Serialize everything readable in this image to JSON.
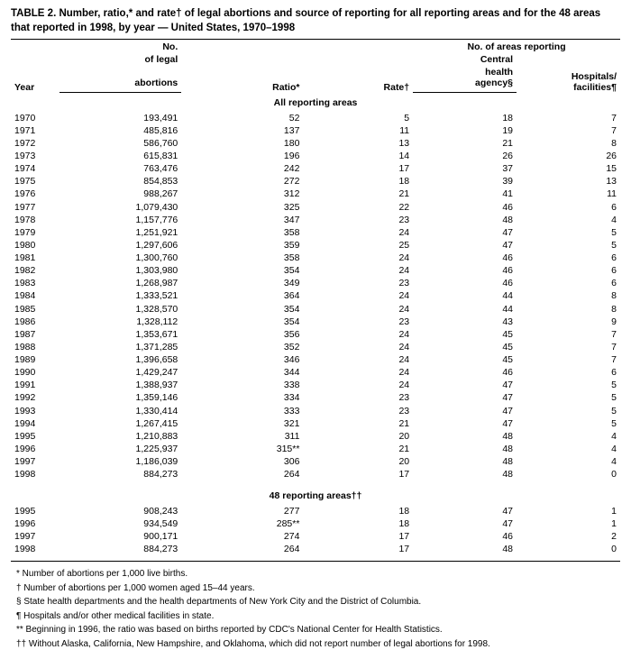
{
  "title": "TABLE 2. Number, ratio,* and rate† of legal abortions and source of reporting for all reporting areas and for the 48 areas that reported in 1998, by year — United States, 1970–1998",
  "columns": {
    "year": "Year",
    "abortions_l1": "No.",
    "abortions_l2": "of legal",
    "abortions_l3": "abortions",
    "ratio": "Ratio*",
    "rate": "Rate†",
    "group_header": "No. of areas reporting",
    "agency_l1": "Central",
    "agency_l2": "health",
    "agency_l3": "agency§",
    "hosp_l1": "Hospitals/",
    "hosp_l2": "facilities¶"
  },
  "sections": [
    {
      "heading": "All reporting areas",
      "rows": [
        {
          "year": "1970",
          "abortions": "193,491",
          "ratio": "52",
          "rate": "5",
          "agency": "18",
          "hosp": "7"
        },
        {
          "year": "1971",
          "abortions": "485,816",
          "ratio": "137",
          "rate": "11",
          "agency": "19",
          "hosp": "7"
        },
        {
          "year": "1972",
          "abortions": "586,760",
          "ratio": "180",
          "rate": "13",
          "agency": "21",
          "hosp": "8"
        },
        {
          "year": "1973",
          "abortions": "615,831",
          "ratio": "196",
          "rate": "14",
          "agency": "26",
          "hosp": "26"
        },
        {
          "year": "1974",
          "abortions": "763,476",
          "ratio": "242",
          "rate": "17",
          "agency": "37",
          "hosp": "15"
        },
        {
          "year": "1975",
          "abortions": "854,853",
          "ratio": "272",
          "rate": "18",
          "agency": "39",
          "hosp": "13"
        },
        {
          "year": "1976",
          "abortions": "988,267",
          "ratio": "312",
          "rate": "21",
          "agency": "41",
          "hosp": "11"
        },
        {
          "year": "1977",
          "abortions": "1,079,430",
          "ratio": "325",
          "rate": "22",
          "agency": "46",
          "hosp": "6"
        },
        {
          "year": "1978",
          "abortions": "1,157,776",
          "ratio": "347",
          "rate": "23",
          "agency": "48",
          "hosp": "4"
        },
        {
          "year": "1979",
          "abortions": "1,251,921",
          "ratio": "358",
          "rate": "24",
          "agency": "47",
          "hosp": "5"
        },
        {
          "year": "1980",
          "abortions": "1,297,606",
          "ratio": "359",
          "rate": "25",
          "agency": "47",
          "hosp": "5"
        },
        {
          "year": "1981",
          "abortions": "1,300,760",
          "ratio": "358",
          "rate": "24",
          "agency": "46",
          "hosp": "6"
        },
        {
          "year": "1982",
          "abortions": "1,303,980",
          "ratio": "354",
          "rate": "24",
          "agency": "46",
          "hosp": "6"
        },
        {
          "year": "1983",
          "abortions": "1,268,987",
          "ratio": "349",
          "rate": "23",
          "agency": "46",
          "hosp": "6"
        },
        {
          "year": "1984",
          "abortions": "1,333,521",
          "ratio": "364",
          "rate": "24",
          "agency": "44",
          "hosp": "8"
        },
        {
          "year": "1985",
          "abortions": "1,328,570",
          "ratio": "354",
          "rate": "24",
          "agency": "44",
          "hosp": "8"
        },
        {
          "year": "1986",
          "abortions": "1,328,112",
          "ratio": "354",
          "rate": "23",
          "agency": "43",
          "hosp": "9"
        },
        {
          "year": "1987",
          "abortions": "1,353,671",
          "ratio": "356",
          "rate": "24",
          "agency": "45",
          "hosp": "7"
        },
        {
          "year": "1988",
          "abortions": "1,371,285",
          "ratio": "352",
          "rate": "24",
          "agency": "45",
          "hosp": "7"
        },
        {
          "year": "1989",
          "abortions": "1,396,658",
          "ratio": "346",
          "rate": "24",
          "agency": "45",
          "hosp": "7"
        },
        {
          "year": "1990",
          "abortions": "1,429,247",
          "ratio": "344",
          "rate": "24",
          "agency": "46",
          "hosp": "6"
        },
        {
          "year": "1991",
          "abortions": "1,388,937",
          "ratio": "338",
          "rate": "24",
          "agency": "47",
          "hosp": "5"
        },
        {
          "year": "1992",
          "abortions": "1,359,146",
          "ratio": "334",
          "rate": "23",
          "agency": "47",
          "hosp": "5"
        },
        {
          "year": "1993",
          "abortions": "1,330,414",
          "ratio": "333",
          "rate": "23",
          "agency": "47",
          "hosp": "5"
        },
        {
          "year": "1994",
          "abortions": "1,267,415",
          "ratio": "321",
          "rate": "21",
          "agency": "47",
          "hosp": "5"
        },
        {
          "year": "1995",
          "abortions": "1,210,883",
          "ratio": "311",
          "rate": "20",
          "agency": "48",
          "hosp": "4"
        },
        {
          "year": "1996",
          "abortions": "1,225,937",
          "ratio": "315**",
          "rate": "21",
          "agency": "48",
          "hosp": "4"
        },
        {
          "year": "1997",
          "abortions": "1,186,039",
          "ratio": "306",
          "rate": "20",
          "agency": "48",
          "hosp": "4"
        },
        {
          "year": "1998",
          "abortions": "884,273",
          "ratio": "264",
          "rate": "17",
          "agency": "48",
          "hosp": "0"
        }
      ]
    },
    {
      "heading": "48 reporting areas††",
      "rows": [
        {
          "year": "1995",
          "abortions": "908,243",
          "ratio": "277",
          "rate": "18",
          "agency": "47",
          "hosp": "1"
        },
        {
          "year": "1996",
          "abortions": "934,549",
          "ratio": "285**",
          "rate": "18",
          "agency": "47",
          "hosp": "1"
        },
        {
          "year": "1997",
          "abortions": "900,171",
          "ratio": "274",
          "rate": "17",
          "agency": "46",
          "hosp": "2"
        },
        {
          "year": "1998",
          "abortions": "884,273",
          "ratio": "264",
          "rate": "17",
          "agency": "48",
          "hosp": "0"
        }
      ]
    }
  ],
  "footnotes": [
    "* Number of abortions per 1,000 live births.",
    "† Number of abortions per 1,000 women aged 15–44 years.",
    "§ State health departments and the health departments of New York City and the District of Columbia.",
    "¶ Hospitals and/or other medical facilities in state.",
    "** Beginning in 1996, the ratio was based on births reported by CDC's National Center for Health Statistics.",
    "†† Without Alaska, California, New Hampshire, and Oklahoma, which did not report number of legal abortions for 1998."
  ]
}
